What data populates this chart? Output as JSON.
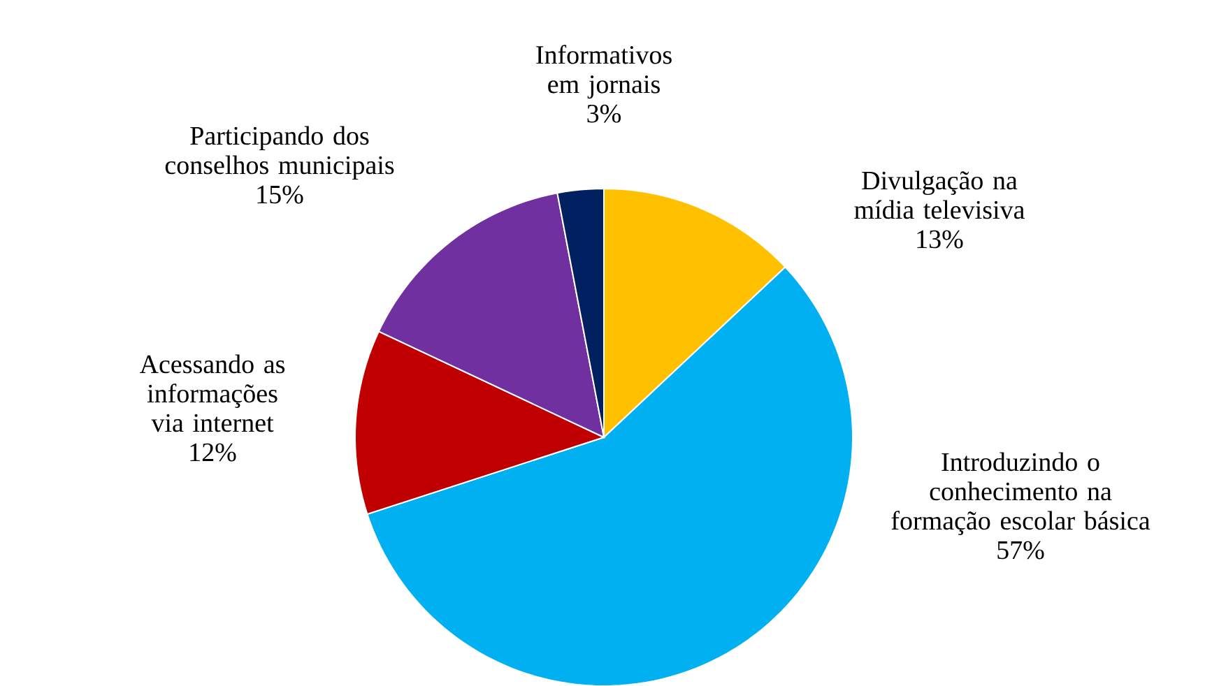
{
  "chart_data": {
    "type": "pie",
    "categories": [
      "Divulgação na mídia televisiva",
      "Introduzindo o conhecimento na formação escolar básica",
      "Acessando as informações via internet",
      "Participando dos conselhos municipais",
      "Informativos em jornais"
    ],
    "values": [
      13,
      57,
      12,
      15,
      3
    ],
    "value_labels": [
      "13%",
      "57%",
      "12%",
      "15%",
      "3%"
    ],
    "colors": [
      "#ffc000",
      "#00b0f0",
      "#c00000",
      "#7030a0",
      "#002060"
    ]
  }
}
